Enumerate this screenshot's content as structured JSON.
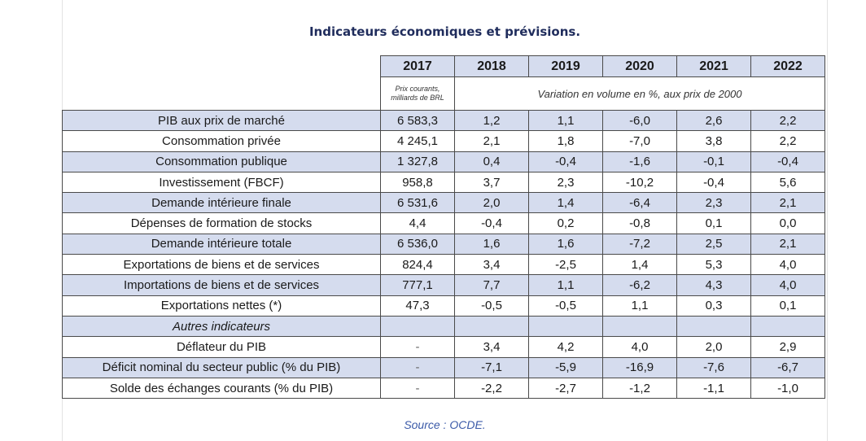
{
  "title": "Indicateurs économiques et prévisions.",
  "source": "Source : OCDE.",
  "chart_data": {
    "type": "table",
    "title": "Indicateurs économiques et prévisions.",
    "columns": [
      "2017",
      "2018",
      "2019",
      "2020",
      "2021",
      "2022"
    ],
    "unit_note_2017": "Prix courants, milliards de BRL",
    "unit_note_variation": "Variation en volume en %, aux prix de 2000",
    "rows": [
      {
        "label": "PIB aux prix de marché",
        "values": [
          "6 583,3",
          "1,2",
          "1,1",
          "-6,0",
          "2,6",
          "2,2"
        ]
      },
      {
        "label": "Consommation privée",
        "values": [
          "4 245,1",
          "2,1",
          "1,8",
          "-7,0",
          "3,8",
          "2,2"
        ]
      },
      {
        "label": "Consommation publique",
        "values": [
          "1 327,8",
          "0,4",
          "-0,4",
          "-1,6",
          "-0,1",
          "-0,4"
        ]
      },
      {
        "label": "Investissement (FBCF)",
        "values": [
          "958,8",
          "3,7",
          "2,3",
          "-10,2",
          "-0,4",
          "5,6"
        ]
      },
      {
        "label": "Demande intérieure finale",
        "values": [
          "6 531,6",
          "2,0",
          "1,4",
          "-6,4",
          "2,3",
          "2,1"
        ]
      },
      {
        "label": "Dépenses de formation de stocks",
        "values": [
          "4,4",
          "-0,4",
          "0,2",
          "-0,8",
          "0,1",
          "0,0"
        ]
      },
      {
        "label": "Demande intérieure totale",
        "values": [
          "6 536,0",
          "1,6",
          "1,6",
          "-7,2",
          "2,5",
          "2,1"
        ]
      },
      {
        "label": "Exportations de biens et de services",
        "values": [
          "824,4",
          "3,4",
          "-2,5",
          "1,4",
          "5,3",
          "4,0"
        ]
      },
      {
        "label": "Importations de biens et de services",
        "values": [
          "777,1",
          "7,7",
          "1,1",
          "-6,2",
          "4,3",
          "4,0"
        ]
      },
      {
        "label": "Exportations nettes (*)",
        "values": [
          "47,3",
          "-0,5",
          "-0,5",
          "1,1",
          "0,3",
          "0,1"
        ]
      },
      {
        "label": "Autres indicateurs",
        "values": [
          "",
          "",
          "",
          "",
          "",
          ""
        ],
        "italic": true
      },
      {
        "label": "Déflateur du PIB",
        "values": [
          "-",
          "3,4",
          "4,2",
          "4,0",
          "2,0",
          "2,9"
        ]
      },
      {
        "label": "Déficit nominal du secteur public (% du PIB)",
        "values": [
          "-",
          "-7,1",
          "-5,9",
          "-16,9",
          "-7,6",
          "-6,7"
        ]
      },
      {
        "label": "Solde des échanges courants (% du PIB)",
        "values": [
          "-",
          "-2,2",
          "-2,7",
          "-1,2",
          "-1,1",
          "-1,0"
        ]
      }
    ]
  },
  "colors": {
    "band": "#d5dcee",
    "title": "#1f2c5c",
    "source": "#3b5aa8"
  }
}
